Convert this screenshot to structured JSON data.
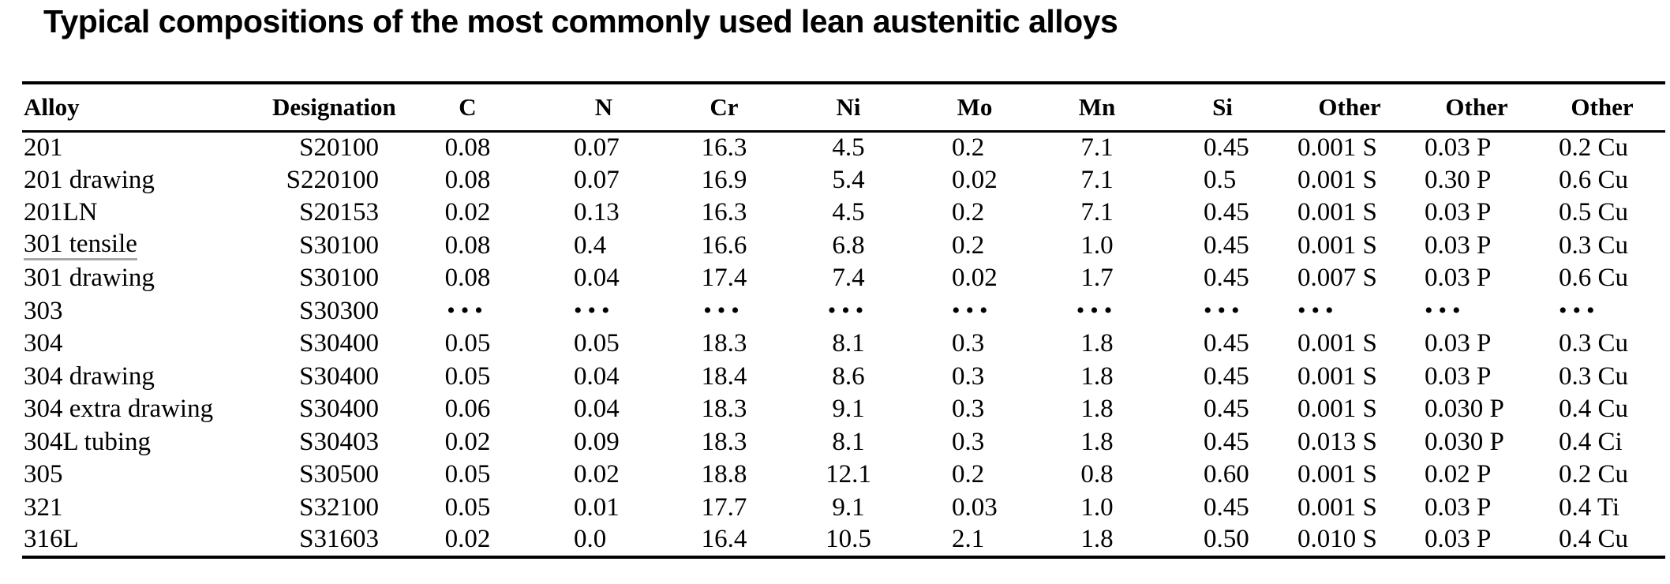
{
  "title": "Typical compositions of the most commonly used lean austenitic alloys",
  "table": {
    "columns": [
      "Alloy",
      "Designation",
      "C",
      "N",
      "Cr",
      "Ni",
      "Mo",
      "Mn",
      "Si",
      "Other",
      "Other",
      "Other"
    ],
    "rows": [
      [
        "201",
        "S20100",
        "0.08",
        "0.07",
        "16.3",
        "4.5",
        "0.2",
        "7.1",
        "0.45",
        "0.001 S",
        "0.03 P",
        "0.2 Cu"
      ],
      [
        "201 drawing",
        "S220100",
        "0.08",
        "0.07",
        "16.9",
        "5.4",
        "0.02",
        "7.1",
        "0.5",
        "0.001 S",
        "0.30 P",
        "0.6 Cu"
      ],
      [
        "201LN",
        "S20153",
        "0.02",
        "0.13",
        "16.3",
        "4.5",
        "0.2",
        "7.1",
        "0.45",
        "0.001 S",
        "0.03 P",
        "0.5 Cu"
      ],
      [
        "301 tensile",
        "S30100",
        "0.08",
        "0.4",
        "16.6",
        "6.8",
        "0.2",
        "1.0",
        "0.45",
        "0.001 S",
        "0.03 P",
        "0.3 Cu"
      ],
      [
        "301 drawing",
        "S30100",
        "0.08",
        "0.04",
        "17.4",
        "7.4",
        "0.02",
        "1.7",
        "0.45",
        "0.007 S",
        "0.03 P",
        "0.6 Cu"
      ],
      [
        "303",
        "S30300",
        "•••",
        "•••",
        "•••",
        "•••",
        "•••",
        "•••",
        "•••",
        "•••",
        "•••",
        "•••"
      ],
      [
        "304",
        "S30400",
        "0.05",
        "0.05",
        "18.3",
        "8.1",
        "0.3",
        "1.8",
        "0.45",
        "0.001 S",
        "0.03 P",
        "0.3 Cu"
      ],
      [
        "304 drawing",
        "S30400",
        "0.05",
        "0.04",
        "18.4",
        "8.6",
        "0.3",
        "1.8",
        "0.45",
        "0.001 S",
        "0.03 P",
        "0.3 Cu"
      ],
      [
        "304 extra drawing",
        "S30400",
        "0.06",
        "0.04",
        "18.3",
        "9.1",
        "0.3",
        "1.8",
        "0.45",
        "0.001 S",
        "0.030 P",
        "0.4 Cu"
      ],
      [
        "304L tubing",
        "S30403",
        "0.02",
        "0.09",
        "18.3",
        "8.1",
        "0.3",
        "1.8",
        "0.45",
        "0.013 S",
        "0.030 P",
        "0.4 Ci"
      ],
      [
        "305",
        "S30500",
        "0.05",
        "0.02",
        "18.8",
        "12.1",
        "0.2",
        "0.8",
        "0.60",
        "0.001 S",
        "0.02 P",
        "0.2 Cu"
      ],
      [
        "321",
        "S32100",
        "0.05",
        "0.01",
        "17.7",
        "9.1",
        "0.03",
        "1.0",
        "0.45",
        "0.001 S",
        "0.03 P",
        "0.4 Ti"
      ],
      [
        "316L",
        "S31603",
        "0.02",
        "0.0",
        "16.4",
        "10.5",
        "2.1",
        "1.8",
        "0.50",
        "0.010 S",
        "0.03 P",
        "0.4 Cu"
      ]
    ],
    "underlined_row_labels": [
      "301 tensile"
    ],
    "missing_data_glyph": "•••"
  }
}
